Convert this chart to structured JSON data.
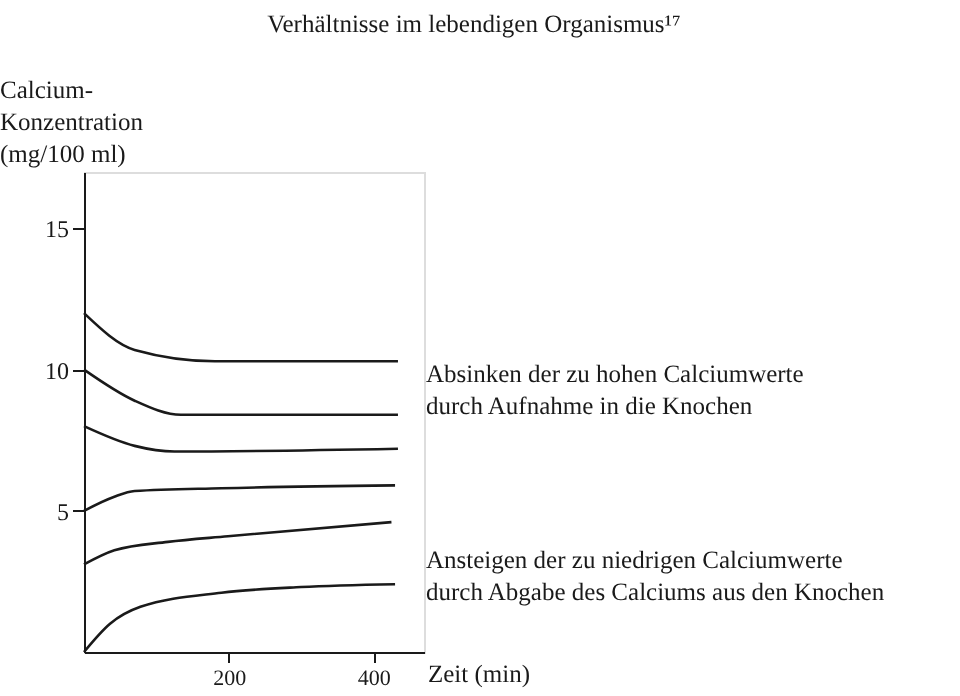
{
  "chart_data": {
    "type": "line",
    "title": "Verhältnisse im lebendigen Organismus¹⁷",
    "ylabel": "Calcium-\nKonzentration\n(mg/100 ml)",
    "xlabel": "Zeit (min)",
    "annotations": [
      "Absinken der zu hohen Calciumwerte\ndurch Aufnahme in die Knochen",
      "Ansteigen der zu niedrigen Calciumwerte\ndurch Abgabe des Calciums aus den Knochen"
    ],
    "series": [
      {
        "color": "#1a1a1a",
        "x": [
          0,
          70,
          181,
          434
        ],
        "values": [
          12.0,
          10.7,
          10.3,
          10.3
        ]
      },
      {
        "color": "#1a1a1a",
        "x": [
          0,
          70,
          134,
          434
        ],
        "values": [
          10.0,
          8.9,
          8.4,
          8.4
        ]
      },
      {
        "color": "#1a1a1a",
        "x": [
          0,
          70,
          125,
          434
        ],
        "values": [
          8.0,
          7.3,
          7.1,
          7.2
        ]
      },
      {
        "color": "#1a1a1a",
        "x": [
          0,
          42,
          70,
          190,
          430
        ],
        "values": [
          5.0,
          5.5,
          5.7,
          5.8,
          5.9
        ]
      },
      {
        "color": "#1a1a1a",
        "x": [
          0,
          42,
          116,
          199,
          425
        ],
        "values": [
          3.1,
          3.6,
          3.9,
          4.1,
          4.6
        ]
      },
      {
        "color": "#1a1a1a",
        "x": [
          0,
          36,
          78,
          190,
          300,
          430
        ],
        "values": [
          0,
          1.0,
          1.6,
          2.1,
          2.3,
          2.4
        ]
      }
    ],
    "xlim": [
      0,
      470
    ],
    "ylim": [
      0,
      17
    ],
    "xticks": [
      200,
      400
    ],
    "yticks": [
      5,
      10,
      15
    ],
    "grid": false,
    "legend": false,
    "marker": "none",
    "line_style": "solid"
  }
}
